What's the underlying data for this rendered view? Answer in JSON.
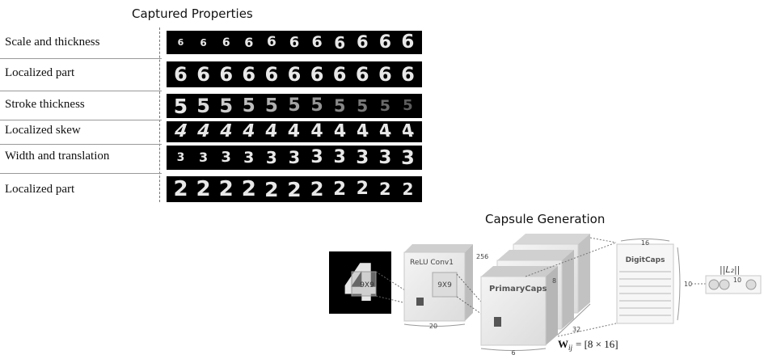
{
  "captured_properties": {
    "title": "Captured Properties",
    "rows": [
      {
        "label": "Scale and thickness",
        "digit": "6"
      },
      {
        "label": "Localized part",
        "digit": "6"
      },
      {
        "label": "Stroke thickness",
        "digit": "5"
      },
      {
        "label": "Localized skew",
        "digit": "4"
      },
      {
        "label": "Width and translation",
        "digit": "3"
      },
      {
        "label": "Localized part",
        "digit": "2"
      }
    ]
  },
  "capsule_generation": {
    "title": "Capsule Generation",
    "input_digit": "4",
    "kernel1_label": "9X9",
    "relu_conv1": {
      "label": "ReLU Conv1",
      "depth": "256",
      "width": "20"
    },
    "kernel2_label": "9X9",
    "primary_caps": {
      "label": "PrimaryCaps",
      "depth": "8",
      "width": "6",
      "count": "32"
    },
    "digit_caps": {
      "label": "DigitCaps",
      "dim": "16",
      "count": "10"
    },
    "l2_norm": {
      "label": "||L₂||",
      "count": "10"
    },
    "weight_label": "W",
    "weight_subscript": "ij",
    "weight_value": "= [8 × 16]"
  }
}
